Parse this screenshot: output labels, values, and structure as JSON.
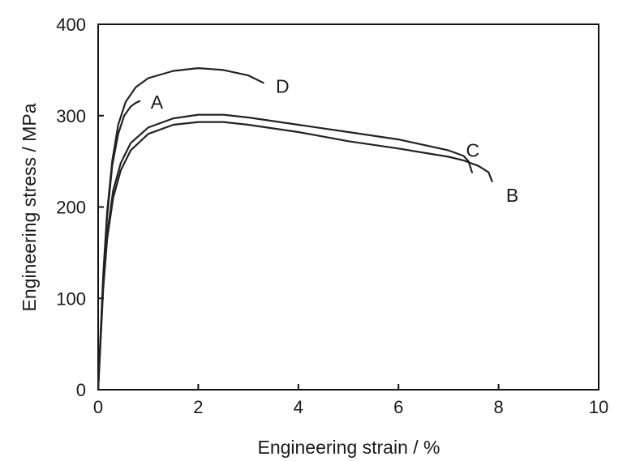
{
  "chart_data": {
    "type": "line",
    "xlabel": "Engineering strain / %",
    "ylabel": "Engineering stress / MPa",
    "xlim": [
      0,
      10
    ],
    "ylim": [
      0,
      400
    ],
    "x_ticks": [
      "0",
      "2",
      "4",
      "6",
      "8",
      "10"
    ],
    "y_ticks": [
      "0",
      "100",
      "200",
      "300",
      "400"
    ],
    "grid": false,
    "legend": "none",
    "series": [
      {
        "name": "A",
        "label_at": [
          1.05,
          315
        ],
        "points": [
          [
            0,
            0
          ],
          [
            0.05,
            60
          ],
          [
            0.1,
            120
          ],
          [
            0.18,
            190
          ],
          [
            0.28,
            245
          ],
          [
            0.4,
            280
          ],
          [
            0.52,
            300
          ],
          [
            0.65,
            310
          ],
          [
            0.75,
            314
          ],
          [
            0.83,
            316
          ]
        ]
      },
      {
        "name": "B",
        "label_at": [
          8.15,
          213
        ],
        "points": [
          [
            0,
            0
          ],
          [
            0.05,
            55
          ],
          [
            0.1,
            110
          ],
          [
            0.18,
            165
          ],
          [
            0.3,
            210
          ],
          [
            0.45,
            240
          ],
          [
            0.65,
            262
          ],
          [
            1.0,
            280
          ],
          [
            1.5,
            290
          ],
          [
            2.0,
            293
          ],
          [
            2.5,
            293
          ],
          [
            3.0,
            290
          ],
          [
            4.0,
            282
          ],
          [
            5.0,
            272
          ],
          [
            6.0,
            264
          ],
          [
            7.0,
            255
          ],
          [
            7.3,
            251
          ],
          [
            7.6,
            245
          ],
          [
            7.8,
            238
          ],
          [
            7.87,
            228
          ]
        ]
      },
      {
        "name": "C",
        "label_at": [
          7.35,
          262
        ],
        "points": [
          [
            0,
            0
          ],
          [
            0.05,
            58
          ],
          [
            0.1,
            115
          ],
          [
            0.18,
            170
          ],
          [
            0.3,
            218
          ],
          [
            0.45,
            248
          ],
          [
            0.65,
            270
          ],
          [
            1.0,
            287
          ],
          [
            1.5,
            297
          ],
          [
            2.0,
            301
          ],
          [
            2.5,
            301
          ],
          [
            3.0,
            298
          ],
          [
            4.0,
            290
          ],
          [
            5.0,
            282
          ],
          [
            6.0,
            274
          ],
          [
            7.0,
            262
          ],
          [
            7.3,
            256
          ],
          [
            7.4,
            250
          ],
          [
            7.47,
            238
          ]
        ]
      },
      {
        "name": "D",
        "label_at": [
          3.55,
          332
        ],
        "points": [
          [
            0,
            0
          ],
          [
            0.05,
            62
          ],
          [
            0.1,
            125
          ],
          [
            0.18,
            195
          ],
          [
            0.28,
            250
          ],
          [
            0.4,
            290
          ],
          [
            0.55,
            315
          ],
          [
            0.75,
            331
          ],
          [
            1.0,
            341
          ],
          [
            1.5,
            349
          ],
          [
            2.0,
            352
          ],
          [
            2.5,
            350
          ],
          [
            3.0,
            344
          ],
          [
            3.3,
            336
          ]
        ]
      }
    ]
  }
}
